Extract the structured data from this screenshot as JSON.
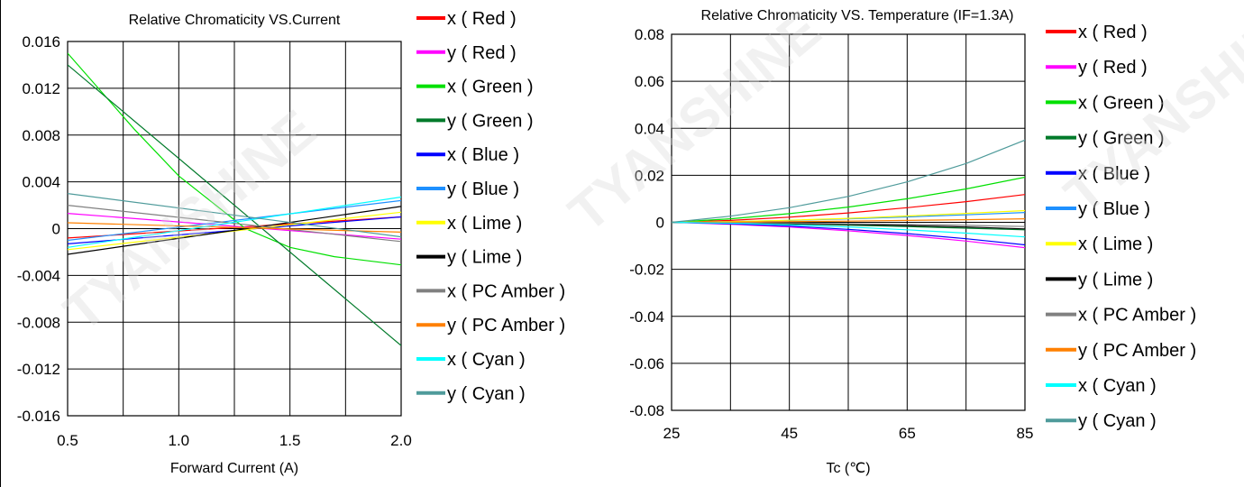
{
  "chart_data": [
    {
      "type": "line",
      "title": "Relative Chromaticity VS.Current",
      "xlabel": "Forward Current (A)",
      "ylabel": "",
      "xlim": [
        0.5,
        2.0
      ],
      "ylim": [
        -0.016,
        0.016
      ],
      "x_ticks": [
        "0.5",
        "1.0",
        "1.5",
        "2.0"
      ],
      "y_ticks": [
        "0.016",
        "0.012",
        "0.008",
        "0.004",
        "0",
        "-0.004",
        "-0.008",
        "-0.012",
        "-0.016"
      ],
      "grid": true,
      "legend_position": "right",
      "series": [
        {
          "name": "x ( Red )",
          "color": "#ff0000",
          "x": [
            0.5,
            2.0
          ],
          "y": [
            -0.0008,
            0.001
          ]
        },
        {
          "name": "y ( Red )",
          "color": "#ff00ff",
          "x": [
            0.5,
            2.0
          ],
          "y": [
            0.0013,
            -0.0009
          ]
        },
        {
          "name": "x ( Green )",
          "color": "#00e000",
          "x": [
            0.5,
            0.8,
            1.0,
            1.3,
            1.5,
            1.7,
            2.0
          ],
          "y": [
            0.015,
            0.0085,
            0.0045,
            0.0,
            -0.0016,
            -0.0024,
            -0.0031
          ]
        },
        {
          "name": "y ( Green )",
          "color": "#007a2a",
          "x": [
            0.5,
            2.0
          ],
          "y": [
            0.014,
            -0.01
          ]
        },
        {
          "name": "x ( Blue )",
          "color": "#0000ff",
          "x": [
            0.5,
            2.0
          ],
          "y": [
            -0.0013,
            0.001
          ]
        },
        {
          "name": "y ( Blue )",
          "color": "#1e90ff",
          "x": [
            0.5,
            2.0
          ],
          "y": [
            -0.001,
            0.0024
          ]
        },
        {
          "name": "x ( Lime )",
          "color": "#ffff00",
          "x": [
            0.5,
            2.0
          ],
          "y": [
            -0.0018,
            0.0014
          ]
        },
        {
          "name": "y ( Lime )",
          "color": "#000000",
          "x": [
            0.5,
            2.0
          ],
          "y": [
            -0.0022,
            0.0019
          ]
        },
        {
          "name": "x ( PC Amber )",
          "color": "#808080",
          "x": [
            0.5,
            2.0
          ],
          "y": [
            0.002,
            -0.0011
          ]
        },
        {
          "name": "y ( PC Amber )",
          "color": "#ff8000",
          "x": [
            0.5,
            2.0
          ],
          "y": [
            0.0005,
            -0.0003
          ]
        },
        {
          "name": "x ( Cyan )",
          "color": "#00ffff",
          "x": [
            0.5,
            2.0
          ],
          "y": [
            -0.0016,
            0.0027
          ]
        },
        {
          "name": "y ( Cyan )",
          "color": "#4f9b9b",
          "x": [
            0.5,
            2.0
          ],
          "y": [
            0.003,
            -0.0007
          ]
        }
      ]
    },
    {
      "type": "line",
      "title": "Relative Chromaticity VS. Temperature (IF=1.3A)",
      "xlabel": "Tc (℃)",
      "ylabel": "",
      "xlim": [
        25,
        85
      ],
      "ylim": [
        -0.08,
        0.08
      ],
      "x_ticks": [
        "25",
        "45",
        "65",
        "85"
      ],
      "y_ticks": [
        "0.08",
        "0.06",
        "0.04",
        "0.02",
        "0",
        "-0.02",
        "-0.04",
        "-0.06",
        "-0.08"
      ],
      "grid": true,
      "legend_position": "right",
      "series": [
        {
          "name": "x ( Red )",
          "color": "#ff0000",
          "x": [
            25,
            35,
            45,
            55,
            65,
            75,
            85
          ],
          "y": [
            0,
            0.0008,
            0.0022,
            0.004,
            0.0062,
            0.0088,
            0.0118
          ]
        },
        {
          "name": "y ( Red )",
          "color": "#ff00ff",
          "x": [
            25,
            35,
            45,
            55,
            65,
            75,
            85
          ],
          "y": [
            0,
            -0.0008,
            -0.002,
            -0.0036,
            -0.0056,
            -0.008,
            -0.0108
          ]
        },
        {
          "name": "x ( Green )",
          "color": "#00e000",
          "x": [
            25,
            35,
            45,
            55,
            65,
            75,
            85
          ],
          "y": [
            0,
            0.0015,
            0.0037,
            0.0065,
            0.01,
            0.0142,
            0.0192
          ]
        },
        {
          "name": "y ( Green )",
          "color": "#007a2a",
          "x": [
            25,
            35,
            45,
            55,
            65,
            75,
            85
          ],
          "y": [
            0,
            -0.0003,
            -0.0007,
            -0.0012,
            -0.0018,
            -0.0025,
            -0.0032
          ]
        },
        {
          "name": "x ( Blue )",
          "color": "#0000ff",
          "x": [
            25,
            35,
            45,
            55,
            65,
            75,
            85
          ],
          "y": [
            0,
            -0.0006,
            -0.0016,
            -0.003,
            -0.0048,
            -0.007,
            -0.0096
          ]
        },
        {
          "name": "y ( Blue )",
          "color": "#1e90ff",
          "x": [
            25,
            35,
            45,
            55,
            65,
            75,
            85
          ],
          "y": [
            0,
            0.0003,
            0.0008,
            0.0015,
            0.0023,
            0.0032,
            0.0042
          ]
        },
        {
          "name": "x ( Lime )",
          "color": "#ffff00",
          "x": [
            25,
            35,
            45,
            55,
            65,
            75,
            85
          ],
          "y": [
            0,
            0.0003,
            0.0009,
            0.0017,
            0.0027,
            0.0038,
            0.005
          ]
        },
        {
          "name": "y ( Lime )",
          "color": "#000000",
          "x": [
            25,
            35,
            45,
            55,
            65,
            75,
            85
          ],
          "y": [
            0,
            -0.0002,
            -0.0005,
            -0.0009,
            -0.0014,
            -0.002,
            -0.0028
          ]
        },
        {
          "name": "x ( PC Amber )",
          "color": "#808080",
          "x": [
            25,
            35,
            45,
            55,
            65,
            75,
            85
          ],
          "y": [
            0,
            -0.0001,
            -0.0003,
            -0.0006,
            -0.0009,
            -0.0013,
            -0.0018
          ]
        },
        {
          "name": "y ( PC Amber )",
          "color": "#ff8000",
          "x": [
            25,
            35,
            45,
            55,
            65,
            75,
            85
          ],
          "y": [
            0,
            0.0001,
            0.0003,
            0.0005,
            0.0008,
            0.0011,
            0.0015
          ]
        },
        {
          "name": "x ( Cyan )",
          "color": "#00ffff",
          "x": [
            25,
            35,
            45,
            55,
            65,
            75,
            85
          ],
          "y": [
            0,
            -0.0004,
            -0.0011,
            -0.002,
            -0.0032,
            -0.0046,
            -0.0062
          ]
        },
        {
          "name": "y ( Cyan )",
          "color": "#4f9b9b",
          "x": [
            25,
            35,
            45,
            55,
            65,
            75,
            85
          ],
          "y": [
            0,
            0.0026,
            0.0062,
            0.011,
            0.0172,
            0.025,
            0.035
          ]
        }
      ]
    }
  ]
}
